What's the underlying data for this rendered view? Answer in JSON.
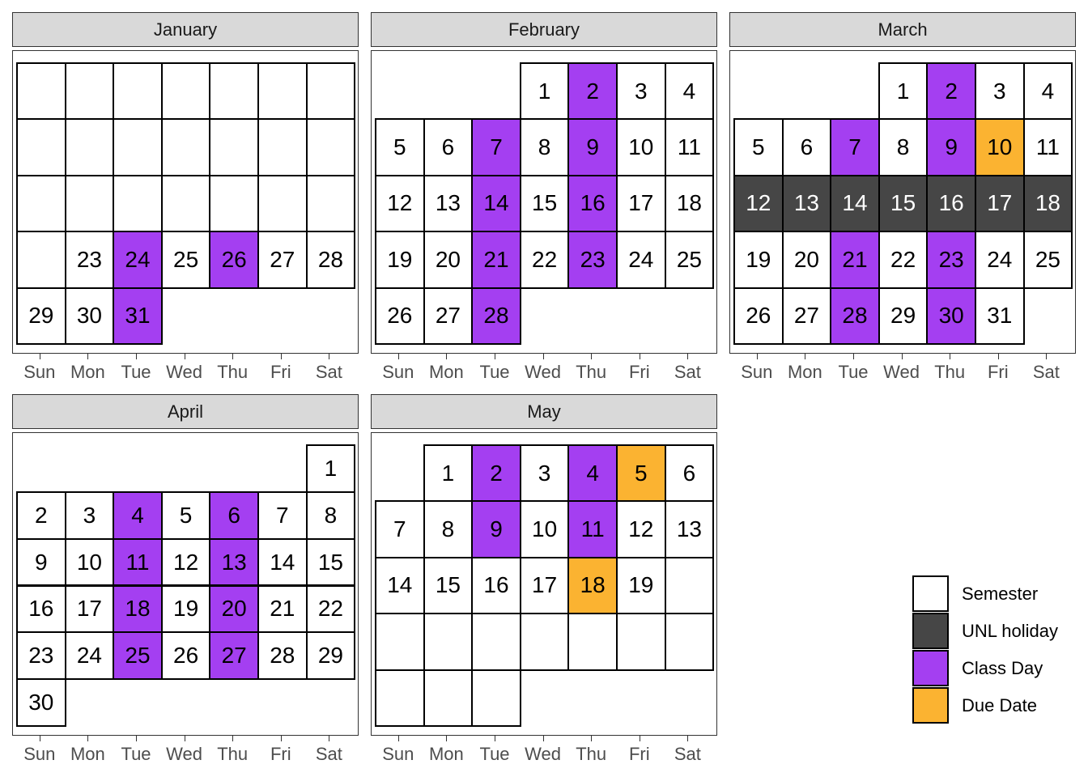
{
  "chart_data": {
    "type": "table",
    "days_of_week": [
      "Sun",
      "Mon",
      "Tue",
      "Wed",
      "Thu",
      "Fri",
      "Sat"
    ],
    "colors": {
      "semester": "#ffffff",
      "holiday": "#464646",
      "class": "#a43ff1",
      "due": "#fbb331"
    },
    "legend": {
      "position": "right",
      "entries": [
        {
          "key": "semester",
          "label": "Semester"
        },
        {
          "key": "holiday",
          "label": "UNL holiday"
        },
        {
          "key": "class",
          "label": "Class Day"
        },
        {
          "key": "due",
          "label": "Due Date"
        }
      ]
    },
    "months": [
      {
        "name": "January",
        "rows": [
          [
            [
              "",
              "semester"
            ],
            [
              "",
              "semester"
            ],
            [
              "",
              "semester"
            ],
            [
              "",
              "semester"
            ],
            [
              "",
              "semester"
            ],
            [
              "",
              "semester"
            ],
            [
              "",
              "semester"
            ]
          ],
          [
            [
              "",
              "semester"
            ],
            [
              "",
              "semester"
            ],
            [
              "",
              "semester"
            ],
            [
              "",
              "semester"
            ],
            [
              "",
              "semester"
            ],
            [
              "",
              "semester"
            ],
            [
              "",
              "semester"
            ]
          ],
          [
            [
              "",
              "semester"
            ],
            [
              "",
              "semester"
            ],
            [
              "",
              "semester"
            ],
            [
              "",
              "semester"
            ],
            [
              "",
              "semester"
            ],
            [
              "",
              "semester"
            ],
            [
              "",
              "semester"
            ]
          ],
          [
            [
              "",
              "semester"
            ],
            [
              "23",
              "semester"
            ],
            [
              "24",
              "class"
            ],
            [
              "25",
              "semester"
            ],
            [
              "26",
              "class"
            ],
            [
              "27",
              "semester"
            ],
            [
              "28",
              "semester"
            ]
          ],
          [
            [
              "29",
              "semester"
            ],
            [
              "30",
              "semester"
            ],
            [
              "31",
              "class"
            ],
            null,
            null,
            null,
            null
          ]
        ]
      },
      {
        "name": "February",
        "rows": [
          [
            null,
            null,
            null,
            [
              "1",
              "semester"
            ],
            [
              "2",
              "class"
            ],
            [
              "3",
              "semester"
            ],
            [
              "4",
              "semester"
            ]
          ],
          [
            [
              "5",
              "semester"
            ],
            [
              "6",
              "semester"
            ],
            [
              "7",
              "class"
            ],
            [
              "8",
              "semester"
            ],
            [
              "9",
              "class"
            ],
            [
              "10",
              "semester"
            ],
            [
              "11",
              "semester"
            ]
          ],
          [
            [
              "12",
              "semester"
            ],
            [
              "13",
              "semester"
            ],
            [
              "14",
              "class"
            ],
            [
              "15",
              "semester"
            ],
            [
              "16",
              "class"
            ],
            [
              "17",
              "semester"
            ],
            [
              "18",
              "semester"
            ]
          ],
          [
            [
              "19",
              "semester"
            ],
            [
              "20",
              "semester"
            ],
            [
              "21",
              "class"
            ],
            [
              "22",
              "semester"
            ],
            [
              "23",
              "class"
            ],
            [
              "24",
              "semester"
            ],
            [
              "25",
              "semester"
            ]
          ],
          [
            [
              "26",
              "semester"
            ],
            [
              "27",
              "semester"
            ],
            [
              "28",
              "class"
            ],
            null,
            null,
            null,
            null
          ]
        ]
      },
      {
        "name": "March",
        "rows": [
          [
            null,
            null,
            null,
            [
              "1",
              "semester"
            ],
            [
              "2",
              "class"
            ],
            [
              "3",
              "semester"
            ],
            [
              "4",
              "semester"
            ]
          ],
          [
            [
              "5",
              "semester"
            ],
            [
              "6",
              "semester"
            ],
            [
              "7",
              "class"
            ],
            [
              "8",
              "semester"
            ],
            [
              "9",
              "class"
            ],
            [
              "10",
              "due"
            ],
            [
              "11",
              "semester"
            ]
          ],
          [
            [
              "12",
              "holiday"
            ],
            [
              "13",
              "holiday"
            ],
            [
              "14",
              "holiday"
            ],
            [
              "15",
              "holiday"
            ],
            [
              "16",
              "holiday"
            ],
            [
              "17",
              "holiday"
            ],
            [
              "18",
              "holiday"
            ]
          ],
          [
            [
              "19",
              "semester"
            ],
            [
              "20",
              "semester"
            ],
            [
              "21",
              "class"
            ],
            [
              "22",
              "semester"
            ],
            [
              "23",
              "class"
            ],
            [
              "24",
              "semester"
            ],
            [
              "25",
              "semester"
            ]
          ],
          [
            [
              "26",
              "semester"
            ],
            [
              "27",
              "semester"
            ],
            [
              "28",
              "class"
            ],
            [
              "29",
              "semester"
            ],
            [
              "30",
              "class"
            ],
            [
              "31",
              "semester"
            ],
            null
          ]
        ]
      },
      {
        "name": "April",
        "rows": [
          [
            null,
            null,
            null,
            null,
            null,
            null,
            [
              "1",
              "semester"
            ]
          ],
          [
            [
              "2",
              "semester"
            ],
            [
              "3",
              "semester"
            ],
            [
              "4",
              "class"
            ],
            [
              "5",
              "semester"
            ],
            [
              "6",
              "class"
            ],
            [
              "7",
              "semester"
            ],
            [
              "8",
              "semester"
            ]
          ],
          [
            [
              "9",
              "semester"
            ],
            [
              "10",
              "semester"
            ],
            [
              "11",
              "class"
            ],
            [
              "12",
              "semester"
            ],
            [
              "13",
              "class"
            ],
            [
              "14",
              "semester"
            ],
            [
              "15",
              "semester"
            ]
          ],
          [
            [
              "16",
              "semester"
            ],
            [
              "17",
              "semester"
            ],
            [
              "18",
              "class"
            ],
            [
              "19",
              "semester"
            ],
            [
              "20",
              "class"
            ],
            [
              "21",
              "semester"
            ],
            [
              "22",
              "semester"
            ]
          ],
          [
            [
              "23",
              "semester"
            ],
            [
              "24",
              "semester"
            ],
            [
              "25",
              "class"
            ],
            [
              "26",
              "semester"
            ],
            [
              "27",
              "class"
            ],
            [
              "28",
              "semester"
            ],
            [
              "29",
              "semester"
            ]
          ],
          [
            [
              "30",
              "semester"
            ],
            null,
            null,
            null,
            null,
            null,
            null
          ]
        ]
      },
      {
        "name": "May",
        "rows": [
          [
            null,
            [
              "1",
              "semester"
            ],
            [
              "2",
              "class"
            ],
            [
              "3",
              "semester"
            ],
            [
              "4",
              "class"
            ],
            [
              "5",
              "due"
            ],
            [
              "6",
              "semester"
            ]
          ],
          [
            [
              "7",
              "semester"
            ],
            [
              "8",
              "semester"
            ],
            [
              "9",
              "class"
            ],
            [
              "10",
              "semester"
            ],
            [
              "11",
              "class"
            ],
            [
              "12",
              "semester"
            ],
            [
              "13",
              "semester"
            ]
          ],
          [
            [
              "14",
              "semester"
            ],
            [
              "15",
              "semester"
            ],
            [
              "16",
              "semester"
            ],
            [
              "17",
              "semester"
            ],
            [
              "18",
              "due"
            ],
            [
              "19",
              "semester"
            ],
            [
              "",
              "semester"
            ]
          ],
          [
            [
              "",
              "semester"
            ],
            [
              "",
              "semester"
            ],
            [
              "",
              "semester"
            ],
            [
              "",
              "semester"
            ],
            [
              "",
              "semester"
            ],
            [
              "",
              "semester"
            ],
            [
              "",
              "semester"
            ]
          ],
          [
            [
              "",
              "semester"
            ],
            [
              "",
              "semester"
            ],
            [
              "",
              "semester"
            ],
            null,
            null,
            null,
            null
          ]
        ]
      }
    ]
  }
}
